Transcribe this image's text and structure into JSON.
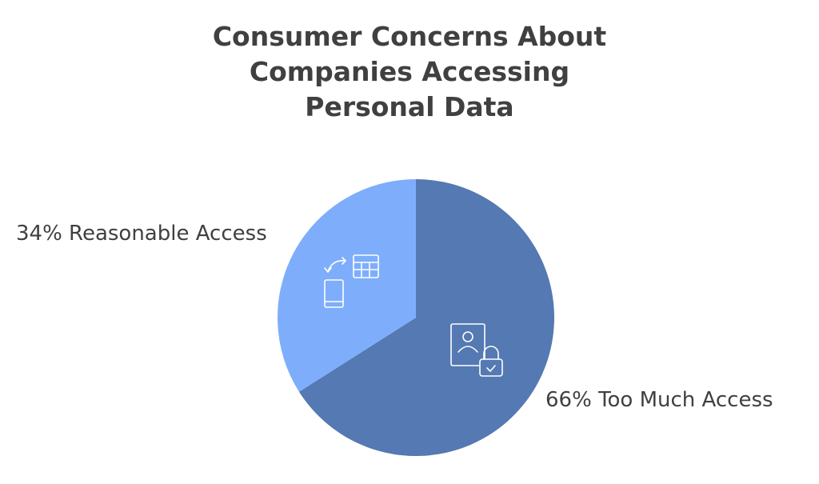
{
  "chart_data": {
    "type": "pie",
    "title_lines": [
      "Consumer Concerns About",
      "Companies Accessing",
      "Personal Data"
    ],
    "slices": [
      {
        "label": "66% Too Much Access",
        "value": 66,
        "color": "#5479b3",
        "icon": "user-lock-icon"
      },
      {
        "label": "34% Reasonable Access",
        "value": 34,
        "color": "#7eaefb",
        "icon": "phone-table-sync-icon"
      }
    ],
    "start_angle_deg": 0,
    "direction": "clockwise"
  }
}
